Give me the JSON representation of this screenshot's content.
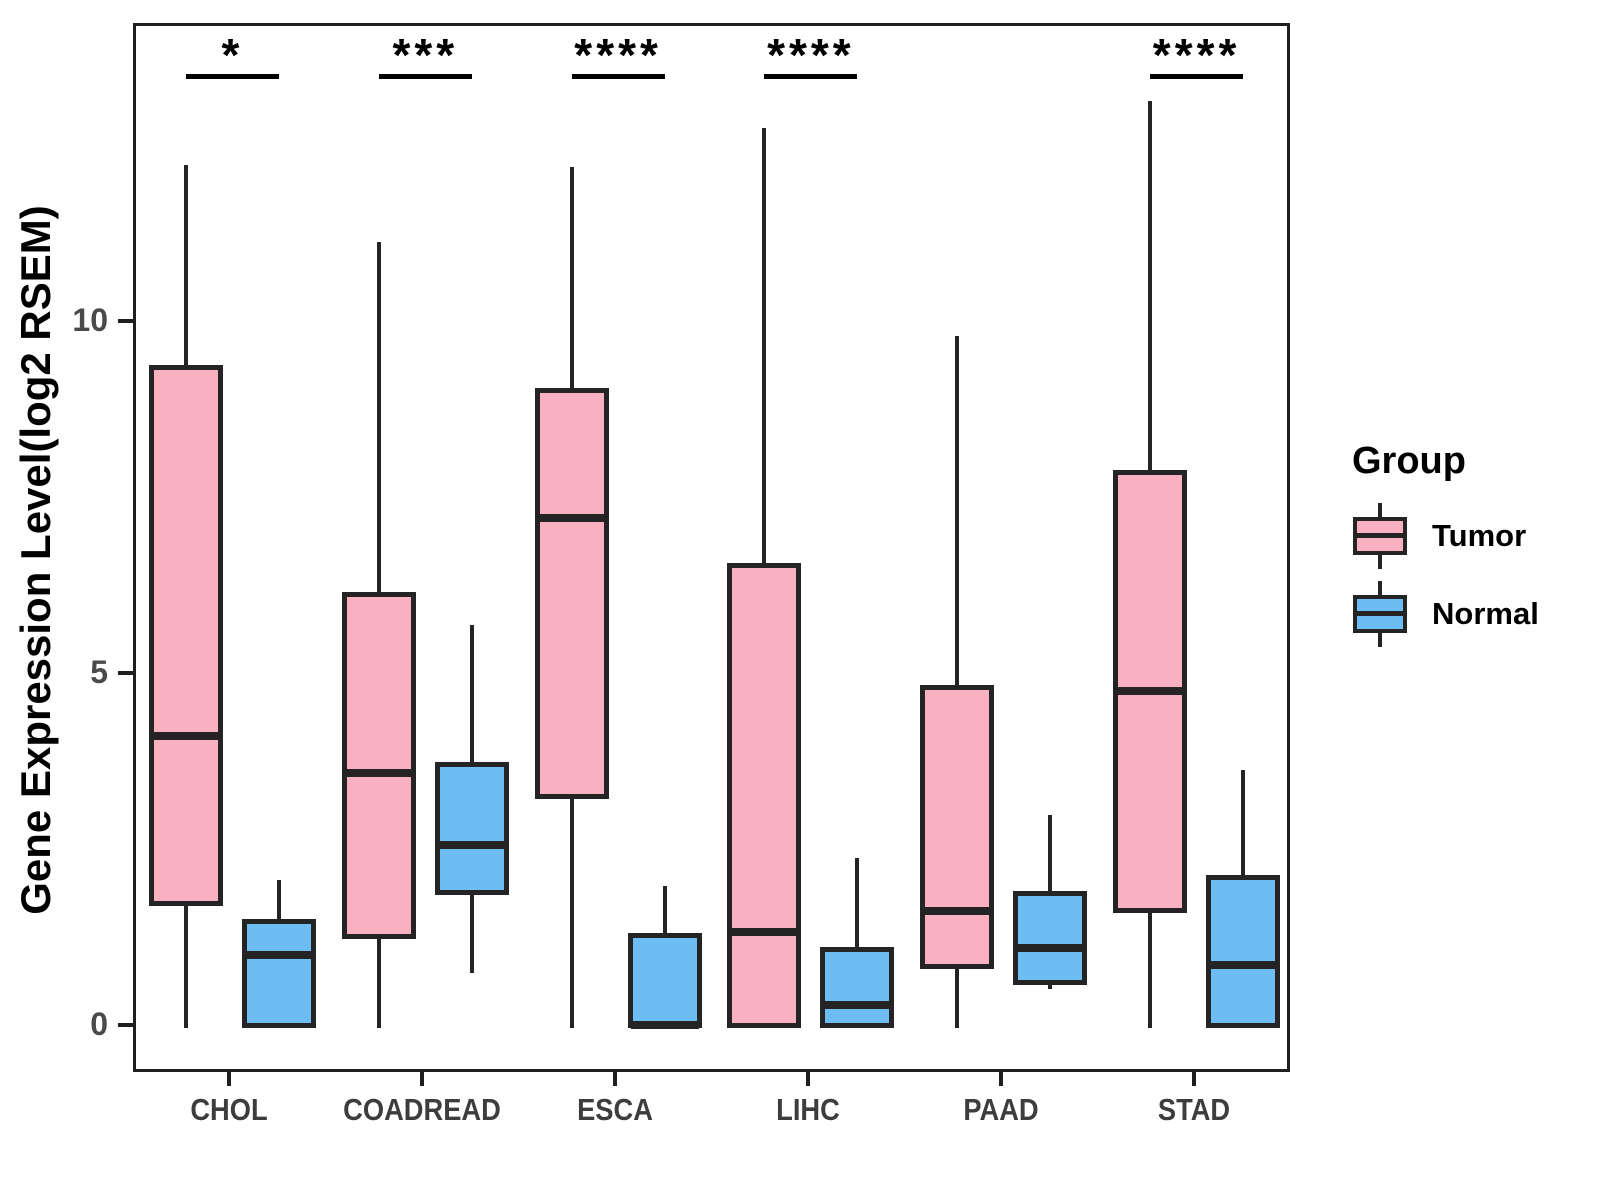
{
  "chart_data": {
    "type": "boxplot",
    "title": "",
    "xlabel": "",
    "ylabel": "Gene Expression Level(log2 RSEM)",
    "ylim": [
      -0.7,
      14.2
    ],
    "yticks": [
      0,
      5,
      10
    ],
    "grid": false,
    "categories": [
      "CHOL",
      "COADREAD",
      "ESCA",
      "LIHC",
      "PAAD",
      "STAD"
    ],
    "legend": {
      "title": "Group",
      "position": "right"
    },
    "groups": [
      {
        "name": "Tumor",
        "fill": "#F9B1C2"
      },
      {
        "name": "Normal",
        "fill": "#6DBDF3"
      }
    ],
    "significance": {
      "labels": [
        "*",
        "***",
        "****",
        "****",
        null,
        "****"
      ]
    },
    "series": [
      {
        "name": "Tumor",
        "boxes": [
          {
            "category": "CHOL",
            "whisker_low": 0,
            "q1": 1.73,
            "median": 4.15,
            "q3": 9.42,
            "whisker_high": 12.26
          },
          {
            "category": "COADREAD",
            "whisker_low": 0,
            "q1": 1.26,
            "median": 3.62,
            "q3": 6.19,
            "whisker_high": 11.16
          },
          {
            "category": "ESCA",
            "whisker_low": 0,
            "q1": 3.25,
            "median": 7.24,
            "q3": 9.09,
            "whisker_high": 12.23
          },
          {
            "category": "LIHC",
            "whisker_low": 0,
            "q1": 0.0,
            "median": 1.36,
            "q3": 6.6,
            "whisker_high": 12.78
          },
          {
            "category": "PAAD",
            "whisker_low": 0,
            "q1": 0.84,
            "median": 1.66,
            "q3": 4.87,
            "whisker_high": 9.83
          },
          {
            "category": "STAD",
            "whisker_low": 0,
            "q1": 1.63,
            "median": 4.79,
            "q3": 7.93,
            "whisker_high": 13.17
          }
        ]
      },
      {
        "name": "Normal",
        "boxes": [
          {
            "category": "CHOL",
            "whisker_low": 0,
            "q1": 0.0,
            "median": 1.04,
            "q3": 1.55,
            "whisker_high": 2.1
          },
          {
            "category": "COADREAD",
            "whisker_low": 0.78,
            "q1": 1.89,
            "median": 2.6,
            "q3": 3.78,
            "whisker_high": 5.72
          },
          {
            "category": "ESCA",
            "whisker_low": 0,
            "q1": 0.0,
            "median": 0.05,
            "q3": 1.35,
            "whisker_high": 2.02
          },
          {
            "category": "LIHC",
            "whisker_low": 0,
            "q1": 0.0,
            "median": 0.33,
            "q3": 1.15,
            "whisker_high": 2.41
          },
          {
            "category": "PAAD",
            "whisker_low": 0.55,
            "q1": 0.61,
            "median": 1.14,
            "q3": 1.95,
            "whisker_high": 3.03
          },
          {
            "category": "STAD",
            "whisker_low": 0,
            "q1": 0.0,
            "median": 0.9,
            "q3": 2.17,
            "whisker_high": 3.66
          }
        ]
      }
    ],
    "colors": {
      "stroke": "#242424",
      "tick_label": "#4a4a4a",
      "category_label": "#3d3d3d"
    }
  }
}
